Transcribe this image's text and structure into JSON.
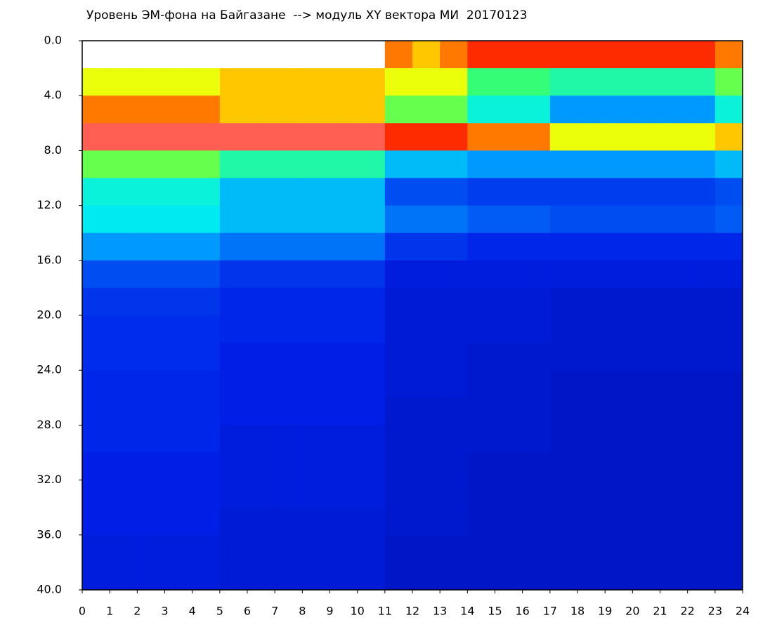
{
  "chart_data": {
    "type": "heatmap",
    "title": "Уровень ЭМ-фона на Байгазане  --> модуль XY вектора МИ  20170123",
    "xlim": [
      0,
      24
    ],
    "xticks": [
      0,
      1,
      2,
      3,
      4,
      5,
      6,
      7,
      8,
      9,
      10,
      11,
      12,
      13,
      14,
      15,
      16,
      17,
      18,
      19,
      20,
      21,
      22,
      23,
      24
    ],
    "ylim": [
      0,
      40
    ],
    "y_inverted": true,
    "yticks": [
      {
        "value": 0,
        "label": "0.0"
      },
      {
        "value": 4,
        "label": "4.0"
      },
      {
        "value": 8,
        "label": "8.0"
      },
      {
        "value": 12,
        "label": "12.0"
      },
      {
        "value": 16,
        "label": "16.0"
      },
      {
        "value": 20,
        "label": "20.0"
      },
      {
        "value": 24,
        "label": "24.0"
      },
      {
        "value": 28,
        "label": "28.0"
      },
      {
        "value": 32,
        "label": "32.0"
      },
      {
        "value": 36,
        "label": "36.0"
      },
      {
        "value": 40,
        "label": "40.0"
      }
    ],
    "colormap": [
      "#00007a",
      "#0020e8",
      "#0090ff",
      "#00f0f0",
      "#40ff60",
      "#ffff00",
      "#ff2000",
      "#ff8080"
    ],
    "x": [
      0.5,
      1.5,
      2.5,
      3.5,
      4.5,
      5.5,
      6.5,
      7.5,
      8.5,
      9.5,
      10.5,
      11.5,
      12.5,
      13.5,
      14.5,
      15.5,
      16.5,
      17.5,
      18.5,
      19.5,
      20.5,
      21.5,
      22.5,
      23.5
    ],
    "y": [
      1,
      3,
      5,
      7,
      9,
      11,
      13,
      15,
      17,
      19,
      21,
      23,
      25,
      27,
      29,
      31,
      33,
      35,
      37,
      39
    ],
    "z": [
      [
        null,
        null,
        null,
        null,
        null,
        null,
        null,
        null,
        null,
        null,
        null,
        0.8,
        0.75,
        0.8,
        0.85,
        0.85,
        0.85,
        0.85,
        0.85,
        0.85,
        0.85,
        0.85,
        0.85,
        0.8
      ],
      [
        0.7,
        0.7,
        0.7,
        0.7,
        0.7,
        0.75,
        0.75,
        0.75,
        0.75,
        0.75,
        0.75,
        0.7,
        0.7,
        0.7,
        0.55,
        0.55,
        0.55,
        0.5,
        0.5,
        0.5,
        0.5,
        0.5,
        0.5,
        0.6
      ],
      [
        0.8,
        0.8,
        0.8,
        0.8,
        0.8,
        0.75,
        0.75,
        0.75,
        0.75,
        0.75,
        0.75,
        0.6,
        0.6,
        0.6,
        0.45,
        0.45,
        0.45,
        0.3,
        0.3,
        0.3,
        0.3,
        0.3,
        0.3,
        0.45
      ],
      [
        0.95,
        0.95,
        0.95,
        0.95,
        0.95,
        0.95,
        0.95,
        0.95,
        0.95,
        0.95,
        0.95,
        0.85,
        0.85,
        0.85,
        0.8,
        0.8,
        0.8,
        0.7,
        0.7,
        0.7,
        0.7,
        0.7,
        0.7,
        0.75
      ],
      [
        0.6,
        0.6,
        0.6,
        0.6,
        0.6,
        0.5,
        0.5,
        0.5,
        0.5,
        0.5,
        0.5,
        0.35,
        0.35,
        0.35,
        0.3,
        0.3,
        0.3,
        0.3,
        0.3,
        0.3,
        0.3,
        0.3,
        0.3,
        0.35
      ],
      [
        0.45,
        0.45,
        0.45,
        0.45,
        0.45,
        0.35,
        0.35,
        0.35,
        0.35,
        0.35,
        0.35,
        0.2,
        0.2,
        0.2,
        0.18,
        0.18,
        0.18,
        0.18,
        0.18,
        0.18,
        0.18,
        0.18,
        0.18,
        0.2
      ],
      [
        0.42,
        0.42,
        0.42,
        0.42,
        0.42,
        0.35,
        0.35,
        0.35,
        0.35,
        0.35,
        0.35,
        0.25,
        0.25,
        0.25,
        0.22,
        0.22,
        0.22,
        0.2,
        0.2,
        0.2,
        0.2,
        0.2,
        0.2,
        0.22
      ],
      [
        0.3,
        0.3,
        0.3,
        0.3,
        0.3,
        0.25,
        0.25,
        0.25,
        0.25,
        0.25,
        0.25,
        0.17,
        0.17,
        0.17,
        0.15,
        0.15,
        0.15,
        0.15,
        0.15,
        0.15,
        0.15,
        0.15,
        0.15,
        0.15
      ],
      [
        0.2,
        0.2,
        0.2,
        0.2,
        0.2,
        0.17,
        0.17,
        0.17,
        0.17,
        0.17,
        0.17,
        0.13,
        0.13,
        0.13,
        0.13,
        0.13,
        0.13,
        0.13,
        0.13,
        0.13,
        0.13,
        0.13,
        0.13,
        0.13
      ],
      [
        0.17,
        0.17,
        0.17,
        0.17,
        0.17,
        0.15,
        0.15,
        0.15,
        0.15,
        0.15,
        0.15,
        0.12,
        0.12,
        0.12,
        0.12,
        0.12,
        0.12,
        0.11,
        0.11,
        0.11,
        0.11,
        0.11,
        0.11,
        0.11
      ],
      [
        0.16,
        0.16,
        0.16,
        0.16,
        0.16,
        0.15,
        0.15,
        0.15,
        0.15,
        0.15,
        0.15,
        0.12,
        0.12,
        0.12,
        0.12,
        0.12,
        0.12,
        0.11,
        0.11,
        0.11,
        0.11,
        0.11,
        0.11,
        0.11
      ],
      [
        0.16,
        0.16,
        0.16,
        0.16,
        0.16,
        0.14,
        0.14,
        0.14,
        0.14,
        0.14,
        0.14,
        0.12,
        0.12,
        0.12,
        0.11,
        0.11,
        0.11,
        0.11,
        0.11,
        0.11,
        0.11,
        0.11,
        0.11,
        0.11
      ],
      [
        0.15,
        0.15,
        0.15,
        0.15,
        0.15,
        0.14,
        0.14,
        0.14,
        0.14,
        0.14,
        0.14,
        0.12,
        0.12,
        0.12,
        0.11,
        0.11,
        0.11,
        0.1,
        0.1,
        0.1,
        0.1,
        0.1,
        0.1,
        0.1
      ],
      [
        0.15,
        0.15,
        0.15,
        0.15,
        0.15,
        0.14,
        0.14,
        0.14,
        0.14,
        0.14,
        0.14,
        0.11,
        0.11,
        0.11,
        0.11,
        0.11,
        0.11,
        0.1,
        0.1,
        0.1,
        0.1,
        0.1,
        0.1,
        0.1
      ],
      [
        0.15,
        0.15,
        0.15,
        0.15,
        0.15,
        0.13,
        0.13,
        0.13,
        0.13,
        0.13,
        0.13,
        0.11,
        0.11,
        0.11,
        0.11,
        0.11,
        0.11,
        0.1,
        0.1,
        0.1,
        0.1,
        0.1,
        0.1,
        0.1
      ],
      [
        0.14,
        0.14,
        0.14,
        0.14,
        0.14,
        0.13,
        0.13,
        0.13,
        0.13,
        0.13,
        0.13,
        0.11,
        0.11,
        0.11,
        0.1,
        0.1,
        0.1,
        0.1,
        0.1,
        0.1,
        0.1,
        0.1,
        0.1,
        0.1
      ],
      [
        0.14,
        0.14,
        0.14,
        0.14,
        0.14,
        0.13,
        0.13,
        0.13,
        0.13,
        0.13,
        0.13,
        0.11,
        0.11,
        0.11,
        0.1,
        0.1,
        0.1,
        0.1,
        0.1,
        0.1,
        0.1,
        0.1,
        0.1,
        0.1
      ],
      [
        0.14,
        0.14,
        0.14,
        0.14,
        0.14,
        0.12,
        0.12,
        0.12,
        0.12,
        0.12,
        0.12,
        0.11,
        0.11,
        0.11,
        0.1,
        0.1,
        0.1,
        0.1,
        0.1,
        0.1,
        0.1,
        0.1,
        0.1,
        0.1
      ],
      [
        0.13,
        0.13,
        0.13,
        0.13,
        0.13,
        0.12,
        0.12,
        0.12,
        0.12,
        0.12,
        0.12,
        0.1,
        0.1,
        0.1,
        0.1,
        0.1,
        0.1,
        0.1,
        0.1,
        0.1,
        0.1,
        0.1,
        0.1,
        0.1
      ],
      [
        0.13,
        0.13,
        0.13,
        0.13,
        0.13,
        0.12,
        0.12,
        0.12,
        0.12,
        0.12,
        0.12,
        0.1,
        0.1,
        0.1,
        0.1,
        0.1,
        0.1,
        0.1,
        0.1,
        0.1,
        0.1,
        0.1,
        0.1,
        0.1
      ]
    ]
  }
}
